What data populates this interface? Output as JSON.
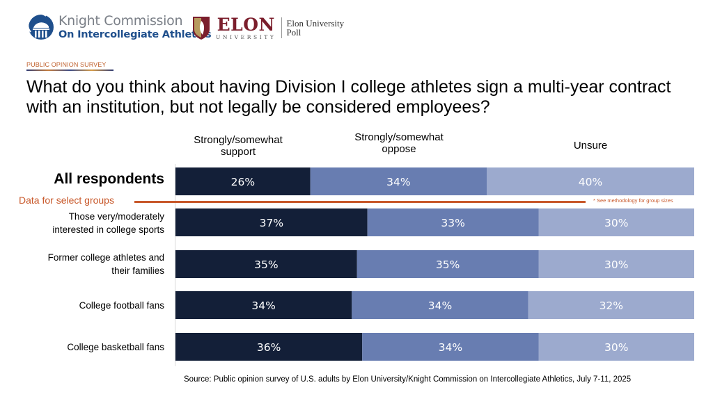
{
  "header": {
    "knight_logo": {
      "icon": "knight-commission-dome-icon",
      "line1": "Knight Commission",
      "line2": "On Intercollegiate Athletics"
    },
    "elon_logo": {
      "icon": "elon-shield-icon",
      "name": "ELON",
      "sub": "UNIVERSITY",
      "poll_line1": "Elon University",
      "poll_line2": "Poll"
    },
    "tag": "PUBLIC OPINION SURVEY"
  },
  "title": "What do you think about having Division I college athletes sign a multi-year contract with an institution, but not legally be considered employees?",
  "annotations": {
    "select_groups": "Data for select groups",
    "methodology_note": "* See methodology for group sizes"
  },
  "source": "Source: Public opinion survey of U.S. adults by Elon University/Knight Commission on Intercollegiate Athletics, July 7-11, 2025",
  "chart_data": {
    "type": "bar",
    "orientation": "horizontal",
    "stacked": true,
    "title": "What do you think about having Division I college athletes sign a multi-year contract with an institution, but not legally be considered employees?",
    "xlabel": "",
    "ylabel": "",
    "xlim": [
      0,
      100
    ],
    "grid": false,
    "legend": "top (column headers)",
    "categories": [
      "All respondents",
      "Those very/moderately interested in college sports",
      "Former college athletes and their families",
      "College football fans",
      "College basketball fans"
    ],
    "category_lines": [
      [
        "All respondents"
      ],
      [
        "Those very/moderately",
        "interested in college sports"
      ],
      [
        "Former college athletes and",
        "their families"
      ],
      [
        "College football fans"
      ],
      [
        "College basketball fans"
      ]
    ],
    "series": [
      {
        "name": "Strongly/somewhat support",
        "header_lines": [
          "Strongly/somewhat",
          "support"
        ],
        "color": "#131f38",
        "values": [
          26,
          37,
          35,
          34,
          36
        ]
      },
      {
        "name": "Strongly/somewhat oppose",
        "header_lines": [
          "Strongly/somewhat",
          "oppose"
        ],
        "color": "#687db1",
        "values": [
          34,
          33,
          35,
          34,
          34
        ]
      },
      {
        "name": "Unsure",
        "header_lines": [
          "Unsure"
        ],
        "color": "#9caace",
        "values": [
          40,
          30,
          30,
          32,
          30
        ]
      }
    ],
    "value_suffix": "%"
  }
}
